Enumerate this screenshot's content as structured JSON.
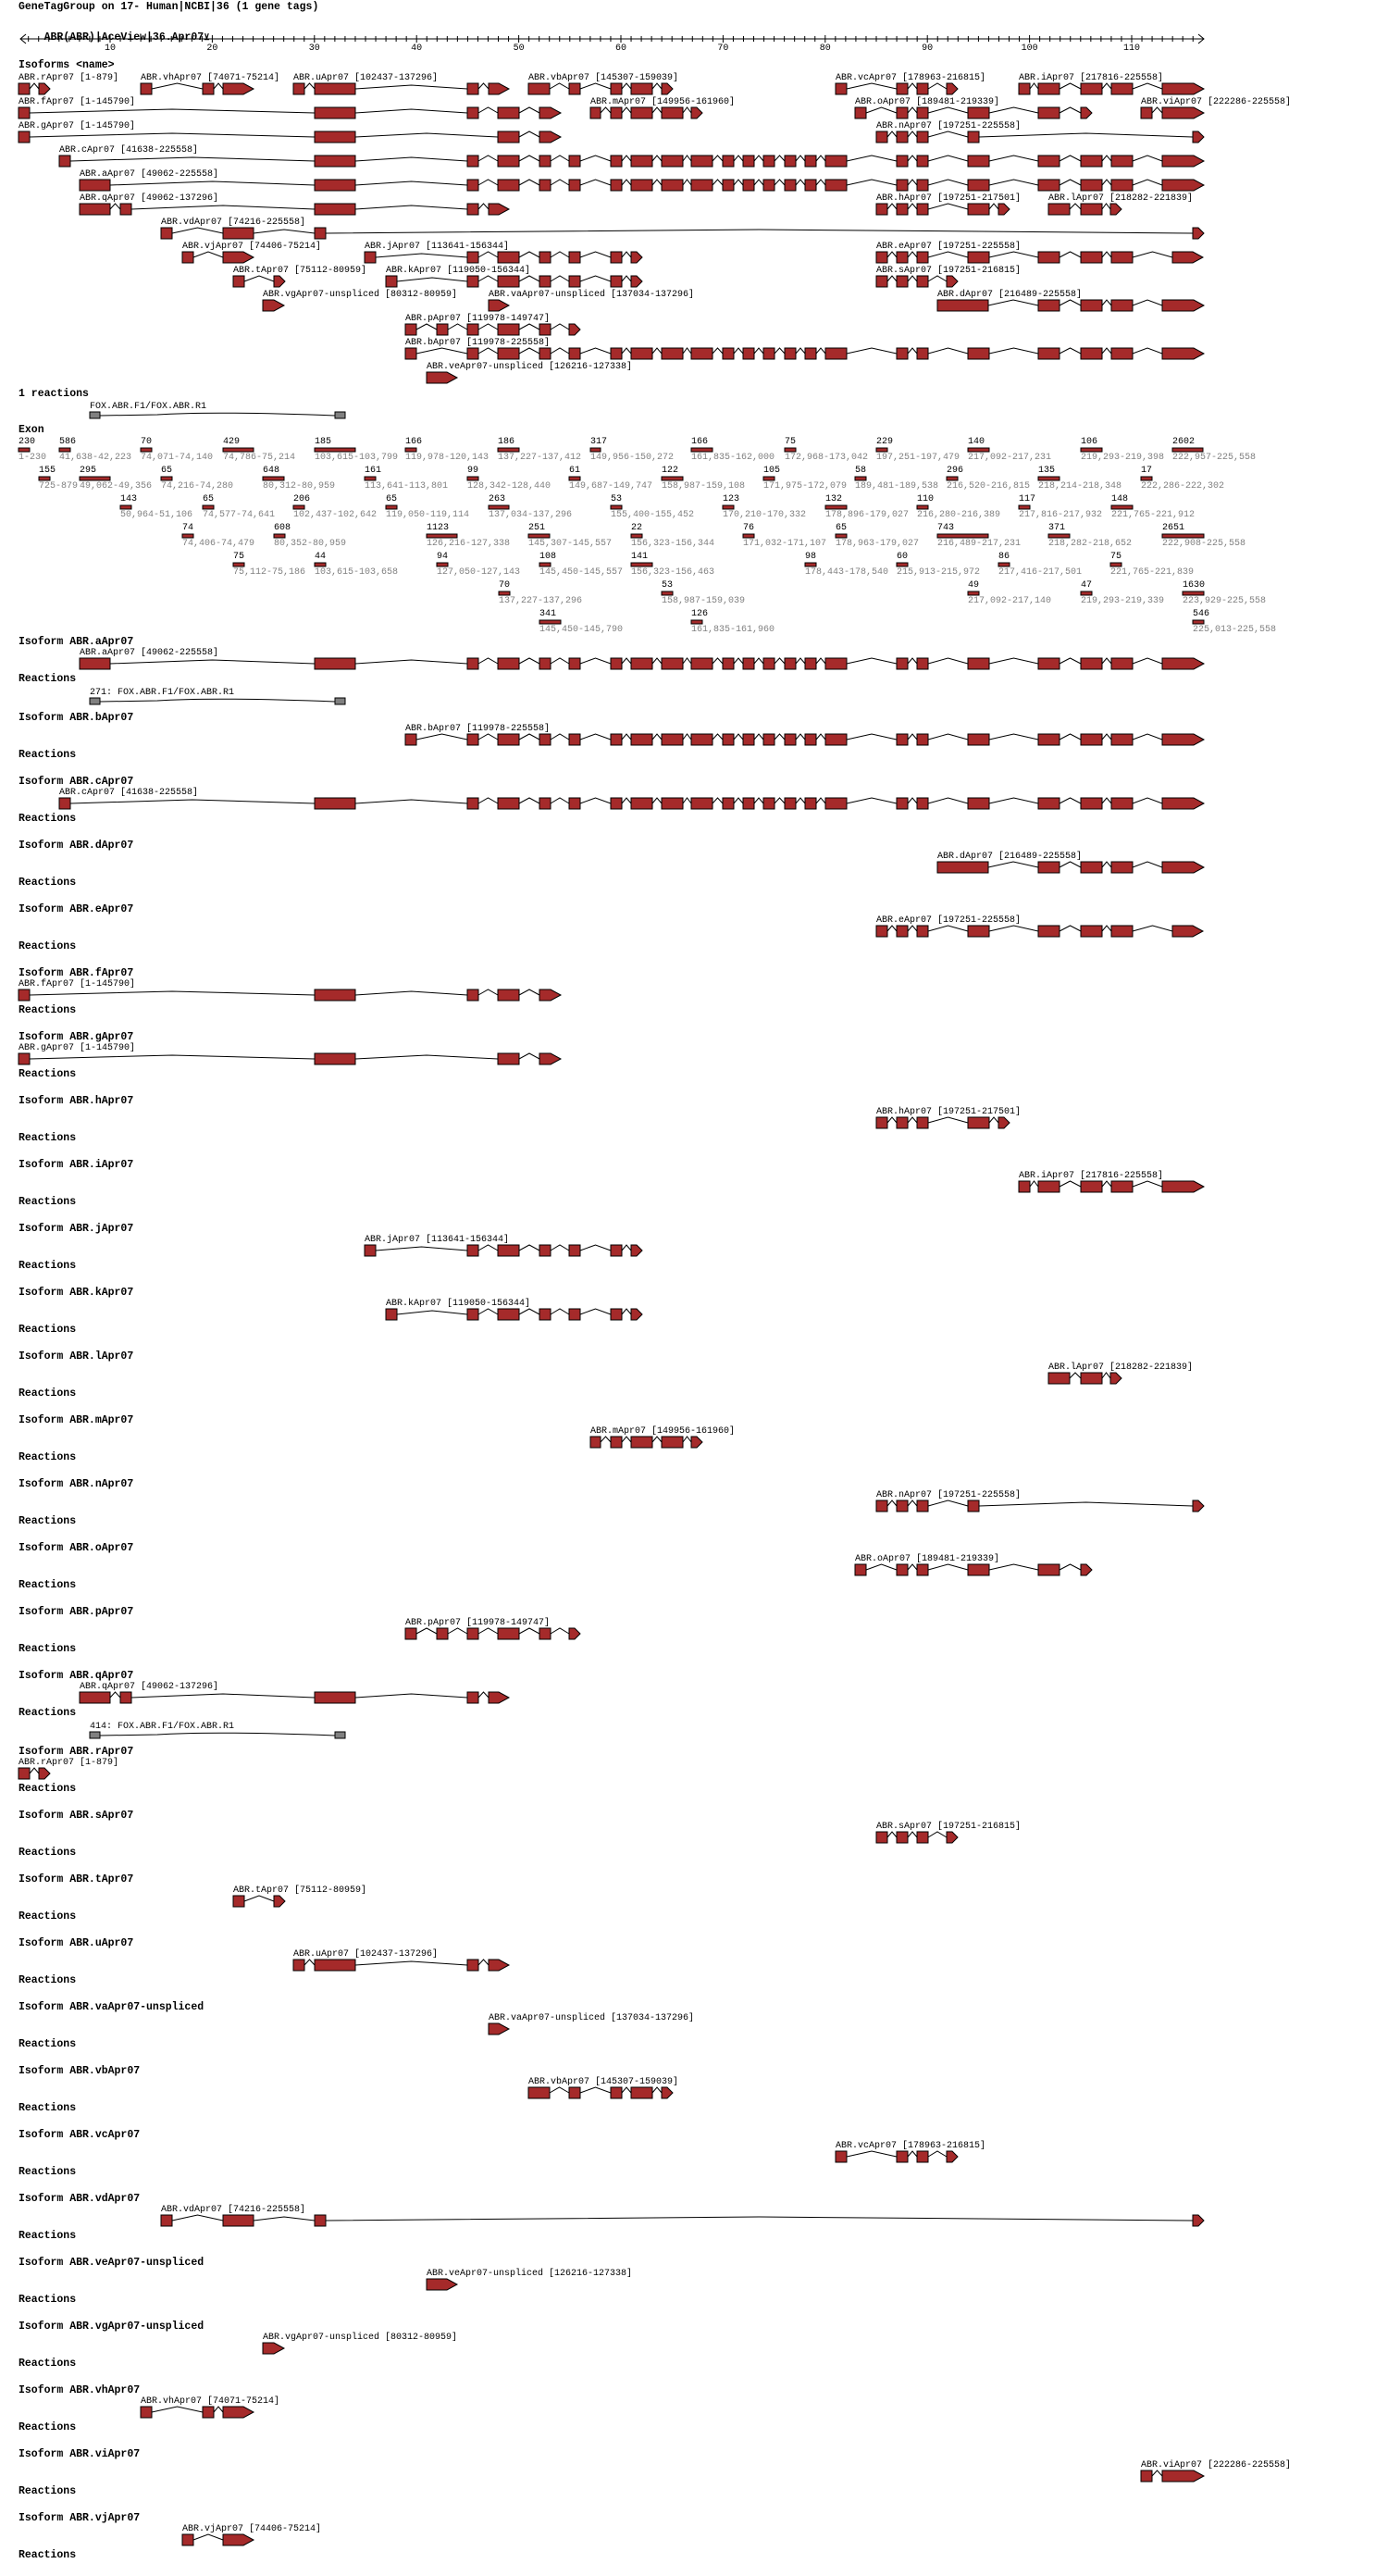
{
  "header": {
    "title": "GeneTagGroup on 17- Human|NCBI|36 (1 gene tags)",
    "subtitle": "ABR(ABR)|AceView|36.Apr07",
    "subtitle_icon": "expand-toggle-icon"
  },
  "axis": {
    "tick_labels": [
      "10",
      "20",
      "30",
      "40",
      "50",
      "60",
      "70",
      "80",
      "90",
      "100",
      "110"
    ]
  },
  "overview": {
    "heading": "Isoforms <name>"
  },
  "colors": {
    "exon": "#a52a2a",
    "reaction": "#808080",
    "exon_range_text": "#808080"
  },
  "isoforms": [
    {
      "label": "ABR.aApr07 [49062-225558]",
      "exons": [
        16,
        5,
        20,
        7,
        52,
        21,
        33,
        53,
        22,
        9,
        34,
        44,
        23,
        10,
        54,
        35,
        55,
        36,
        12,
        26,
        13,
        38,
        48
      ]
    },
    {
      "label": "ABR.bApr07 [119978-225558]",
      "exons": [
        6,
        20,
        7,
        52,
        21,
        33,
        53,
        22,
        9,
        34,
        44,
        23,
        10,
        54,
        35,
        55,
        36,
        12,
        26,
        13,
        38,
        48
      ]
    },
    {
      "label": "ABR.cApr07 [41638-225558]",
      "exons": [
        2,
        5,
        20,
        7,
        52,
        21,
        33,
        53,
        22,
        9,
        34,
        44,
        23,
        10,
        54,
        35,
        55,
        36,
        12,
        26,
        13,
        38,
        48
      ]
    },
    {
      "label": "ABR.dApr07 [216489-225558]",
      "exons": [
        46,
        26,
        13,
        38,
        48
      ]
    },
    {
      "label": "ABR.eApr07 [197251-225558]",
      "exons": [
        11,
        55,
        36,
        12,
        26,
        13,
        38,
        14
      ]
    },
    {
      "label": "ABR.fApr07 [1-145790]",
      "exons": [
        1,
        5,
        20,
        7,
        63
      ]
    },
    {
      "label": "ABR.gApr07 [1-145790]",
      "exons": [
        1,
        5,
        7,
        63
      ]
    },
    {
      "label": "ABR.hApr07 [197251-217501]",
      "exons": [
        11,
        55,
        36,
        12,
        56
      ]
    },
    {
      "label": "ABR.iApr07 [217816-225558]",
      "exons": [
        37,
        26,
        13,
        38,
        48
      ]
    },
    {
      "label": "ABR.jApr07 [113641-156344]",
      "exons": [
        19,
        20,
        7,
        52,
        21,
        33,
        43
      ]
    },
    {
      "label": "ABR.kApr07 [119050-156344]",
      "exons": [
        31,
        20,
        7,
        52,
        21,
        33,
        43
      ]
    },
    {
      "label": "ABR.lApr07 [218282-221839]",
      "exons": [
        47,
        13,
        57
      ]
    },
    {
      "label": "ABR.mApr07 [149956-161960]",
      "exons": [
        8,
        33,
        53,
        22,
        64
      ]
    },
    {
      "label": "ABR.nApr07 [197251-225558]",
      "exons": [
        11,
        55,
        36,
        60,
        65
      ]
    },
    {
      "label": "ABR.oApr07 [189481-219339]",
      "exons": [
        24,
        55,
        36,
        12,
        26,
        61
      ]
    },
    {
      "label": "ABR.pApr07 [119978-149747]",
      "exons": [
        6,
        51,
        20,
        7,
        52,
        21
      ]
    },
    {
      "label": "ABR.qApr07 [49062-137296]",
      "exons": [
        16,
        28,
        5,
        20,
        32
      ]
    },
    {
      "label": "ABR.rApr07 [1-879]",
      "exons": [
        1,
        15
      ]
    },
    {
      "label": "ABR.sApr07 [197251-216815]",
      "exons": [
        11,
        55,
        36,
        25
      ]
    },
    {
      "label": "ABR.tApr07 [75112-80959]",
      "exons": [
        49,
        40
      ]
    },
    {
      "label": "ABR.uApr07 [102437-137296]",
      "exons": [
        30,
        5,
        20,
        32
      ]
    },
    {
      "label": "ABR.vaApr07-unspliced [137034-137296]",
      "exons": [
        32
      ]
    },
    {
      "label": "ABR.vbApr07 [145307-159039]",
      "exons": [
        42,
        21,
        33,
        53,
        59
      ]
    },
    {
      "label": "ABR.vcApr07 [178963-216815]",
      "exons": [
        45,
        55,
        36,
        25
      ]
    },
    {
      "label": "ABR.vdApr07 [74216-225558]",
      "exons": [
        17,
        4,
        50,
        65
      ]
    },
    {
      "label": "ABR.veApr07-unspliced [126216-127338]",
      "exons": [
        41
      ]
    },
    {
      "label": "ABR.vgApr07-unspliced [80312-80959]",
      "exons": [
        18
      ]
    },
    {
      "label": "ABR.vhApr07 [74071-75214]",
      "exons": [
        3,
        29,
        4
      ]
    },
    {
      "label": "ABR.viApr07 [222286-225558]",
      "exons": [
        27,
        48
      ]
    },
    {
      "label": "ABR.vjApr07 [74406-75214]",
      "exons": [
        39,
        4
      ]
    }
  ],
  "reactions_summary": {
    "heading": "1 reactions",
    "items": [
      {
        "label": "FOX.ABR.F1/FOX.ABR.R1"
      }
    ]
  },
  "exon_table": {
    "heading": "Exon",
    "exons": [
      {
        "length": "230",
        "range": "1-230"
      },
      {
        "length": "586",
        "range": "41,638-42,223"
      },
      {
        "length": "70",
        "range": "74,071-74,140"
      },
      {
        "length": "429",
        "range": "74,786-75,214"
      },
      {
        "length": "185",
        "range": "103,615-103,799"
      },
      {
        "length": "166",
        "range": "119,978-120,143"
      },
      {
        "length": "186",
        "range": "137,227-137,412"
      },
      {
        "length": "317",
        "range": "149,956-150,272"
      },
      {
        "length": "166",
        "range": "161,835-162,000"
      },
      {
        "length": "75",
        "range": "172,968-173,042"
      },
      {
        "length": "229",
        "range": "197,251-197,479"
      },
      {
        "length": "140",
        "range": "217,092-217,231"
      },
      {
        "length": "106",
        "range": "219,293-219,398"
      },
      {
        "length": "2602",
        "range": "222,957-225,558"
      },
      {
        "length": "155",
        "range": "725-879"
      },
      {
        "length": "295",
        "range": "49,062-49,356"
      },
      {
        "length": "65",
        "range": "74,216-74,280"
      },
      {
        "length": "648",
        "range": "80,312-80,959"
      },
      {
        "length": "161",
        "range": "113,641-113,801"
      },
      {
        "length": "99",
        "range": "128,342-128,440"
      },
      {
        "length": "61",
        "range": "149,687-149,747"
      },
      {
        "length": "122",
        "range": "158,987-159,108"
      },
      {
        "length": "105",
        "range": "171,975-172,079"
      },
      {
        "length": "58",
        "range": "189,481-189,538"
      },
      {
        "length": "296",
        "range": "216,520-216,815"
      },
      {
        "length": "135",
        "range": "218,214-218,348"
      },
      {
        "length": "17",
        "range": "222,286-222,302"
      },
      {
        "length": "143",
        "range": "50,964-51,106"
      },
      {
        "length": "65",
        "range": "74,577-74,641"
      },
      {
        "length": "206",
        "range": "102,437-102,642"
      },
      {
        "length": "65",
        "range": "119,050-119,114"
      },
      {
        "length": "263",
        "range": "137,034-137,296"
      },
      {
        "length": "53",
        "range": "155,400-155,452"
      },
      {
        "length": "123",
        "range": "170,210-170,332"
      },
      {
        "length": "132",
        "range": "178,896-179,027"
      },
      {
        "length": "110",
        "range": "216,280-216,389"
      },
      {
        "length": "117",
        "range": "217,816-217,932"
      },
      {
        "length": "148",
        "range": "221,765-221,912"
      },
      {
        "length": "74",
        "range": "74,406-74,479"
      },
      {
        "length": "608",
        "range": "80,352-80,959"
      },
      {
        "length": "1123",
        "range": "126,216-127,338"
      },
      {
        "length": "251",
        "range": "145,307-145,557"
      },
      {
        "length": "22",
        "range": "156,323-156,344"
      },
      {
        "length": "76",
        "range": "171,032-171,107"
      },
      {
        "length": "65",
        "range": "178,963-179,027"
      },
      {
        "length": "743",
        "range": "216,489-217,231"
      },
      {
        "length": "371",
        "range": "218,282-218,652"
      },
      {
        "length": "2651",
        "range": "222,908-225,558"
      },
      {
        "length": "75",
        "range": "75,112-75,186"
      },
      {
        "length": "44",
        "range": "103,615-103,658"
      },
      {
        "length": "94",
        "range": "127,050-127,143"
      },
      {
        "length": "108",
        "range": "145,450-145,557"
      },
      {
        "length": "141",
        "range": "156,323-156,463"
      },
      {
        "length": "98",
        "range": "178,443-178,540"
      },
      {
        "length": "60",
        "range": "215,913-215,972"
      },
      {
        "length": "86",
        "range": "217,416-217,501"
      },
      {
        "length": "75",
        "range": "221,765-221,839"
      },
      {
        "length": "70",
        "range": "137,227-137,296"
      },
      {
        "length": "53",
        "range": "158,987-159,039"
      },
      {
        "length": "49",
        "range": "217,092-217,140"
      },
      {
        "length": "47",
        "range": "219,293-219,339"
      },
      {
        "length": "1630",
        "range": "223,929-225,558"
      },
      {
        "length": "341",
        "range": "145,450-145,790"
      },
      {
        "length": "126",
        "range": "161,835-161,960"
      },
      {
        "length": "546",
        "range": "225,013-225,558"
      }
    ]
  },
  "sections": [
    {
      "heading": "Isoform ABR.aApr07",
      "reactions_label": "Reactions",
      "reactions": [
        {
          "label": "271: FOX.ABR.F1/FOX.ABR.R1"
        }
      ]
    },
    {
      "heading": "Isoform ABR.bApr07",
      "reactions_label": "Reactions",
      "reactions": []
    },
    {
      "heading": "Isoform ABR.cApr07",
      "reactions_label": "Reactions",
      "reactions": []
    },
    {
      "heading": "Isoform ABR.dApr07",
      "reactions_label": "Reactions",
      "reactions": []
    },
    {
      "heading": "Isoform ABR.eApr07",
      "reactions_label": "Reactions",
      "reactions": []
    },
    {
      "heading": "Isoform ABR.fApr07",
      "reactions_label": "Reactions",
      "reactions": []
    },
    {
      "heading": "Isoform ABR.gApr07",
      "reactions_label": "Reactions",
      "reactions": []
    },
    {
      "heading": "Isoform ABR.hApr07",
      "reactions_label": "Reactions",
      "reactions": []
    },
    {
      "heading": "Isoform ABR.iApr07",
      "reactions_label": "Reactions",
      "reactions": []
    },
    {
      "heading": "Isoform ABR.jApr07",
      "reactions_label": "Reactions",
      "reactions": []
    },
    {
      "heading": "Isoform ABR.kApr07",
      "reactions_label": "Reactions",
      "reactions": []
    },
    {
      "heading": "Isoform ABR.lApr07",
      "reactions_label": "Reactions",
      "reactions": []
    },
    {
      "heading": "Isoform ABR.mApr07",
      "reactions_label": "Reactions",
      "reactions": []
    },
    {
      "heading": "Isoform ABR.nApr07",
      "reactions_label": "Reactions",
      "reactions": []
    },
    {
      "heading": "Isoform ABR.oApr07",
      "reactions_label": "Reactions",
      "reactions": []
    },
    {
      "heading": "Isoform ABR.pApr07",
      "reactions_label": "Reactions",
      "reactions": []
    },
    {
      "heading": "Isoform ABR.qApr07",
      "reactions_label": "Reactions",
      "reactions": [
        {
          "label": "414: FOX.ABR.F1/FOX.ABR.R1"
        }
      ]
    },
    {
      "heading": "Isoform ABR.rApr07",
      "reactions_label": "Reactions",
      "reactions": []
    },
    {
      "heading": "Isoform ABR.sApr07",
      "reactions_label": "Reactions",
      "reactions": []
    },
    {
      "heading": "Isoform ABR.tApr07",
      "reactions_label": "Reactions",
      "reactions": []
    },
    {
      "heading": "Isoform ABR.uApr07",
      "reactions_label": "Reactions",
      "reactions": []
    },
    {
      "heading": "Isoform ABR.vaApr07-unspliced",
      "reactions_label": "Reactions",
      "reactions": []
    },
    {
      "heading": "Isoform ABR.vbApr07",
      "reactions_label": "Reactions",
      "reactions": []
    },
    {
      "heading": "Isoform ABR.vcApr07",
      "reactions_label": "Reactions",
      "reactions": []
    },
    {
      "heading": "Isoform ABR.vdApr07",
      "reactions_label": "Reactions",
      "reactions": []
    },
    {
      "heading": "Isoform ABR.veApr07-unspliced",
      "reactions_label": "Reactions",
      "reactions": []
    },
    {
      "heading": "Isoform ABR.vgApr07-unspliced",
      "reactions_label": "Reactions",
      "reactions": []
    },
    {
      "heading": "Isoform ABR.vhApr07",
      "reactions_label": "Reactions",
      "reactions": []
    },
    {
      "heading": "Isoform ABR.viApr07",
      "reactions_label": "Reactions",
      "reactions": []
    },
    {
      "heading": "Isoform ABR.vjApr07",
      "reactions_label": "Reactions",
      "reactions": []
    }
  ]
}
